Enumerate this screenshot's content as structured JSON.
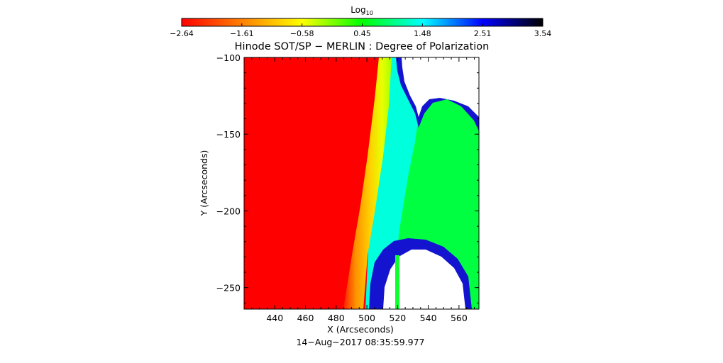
{
  "chart_data": {
    "type": "heatmap",
    "title": "Hinode SOT/SP − MERLIN : Degree of Polarization",
    "xlabel": "X (Arcseconds)",
    "ylabel": "Y (Arcseconds)",
    "timestamp": "14−Aug−2017 08:35:59.977",
    "xlim": [
      420,
      573
    ],
    "ylim": [
      -264,
      -100
    ],
    "x_ticks": [
      440,
      460,
      480,
      500,
      520,
      540,
      560
    ],
    "y_ticks": [
      -100,
      -150,
      -200,
      -250
    ],
    "x_tick_labels": [
      "440",
      "460",
      "480",
      "500",
      "520",
      "540",
      "560"
    ],
    "y_tick_labels": [
      "−100",
      "−150",
      "−200",
      "−250"
    ],
    "colorbar": {
      "label_base": "Log",
      "label_sub": "10",
      "range": [
        -2.64,
        3.54
      ],
      "ticks": [
        -2.64,
        -1.61,
        -0.58,
        0.45,
        1.48,
        2.51,
        3.54
      ],
      "tick_labels": [
        "−2.64",
        "−1.61",
        "−0.58",
        "0.45",
        "1.48",
        "2.51",
        "3.54"
      ],
      "colormap_stops": [
        "#ff0000",
        "#ff8000",
        "#ffff00",
        "#00ff00",
        "#00ffff",
        "#0000ff",
        "#000000"
      ]
    },
    "regions": [
      {
        "name": "low",
        "color": "#ff0000",
        "value": -2.64
      },
      {
        "name": "limb-gradient",
        "colors": [
          "#ff4000",
          "#ffa000",
          "#ffd000",
          "#e0ff00",
          "#a0ff00"
        ]
      },
      {
        "name": "cyan",
        "color": "#00ffdd",
        "value": 1.0
      },
      {
        "name": "green",
        "color": "#00ff40",
        "value": 0.6
      },
      {
        "name": "blue-edge",
        "color": "#1010d0",
        "value": 2.5
      },
      {
        "name": "white-saturated",
        "color": "#ffffff"
      }
    ]
  }
}
